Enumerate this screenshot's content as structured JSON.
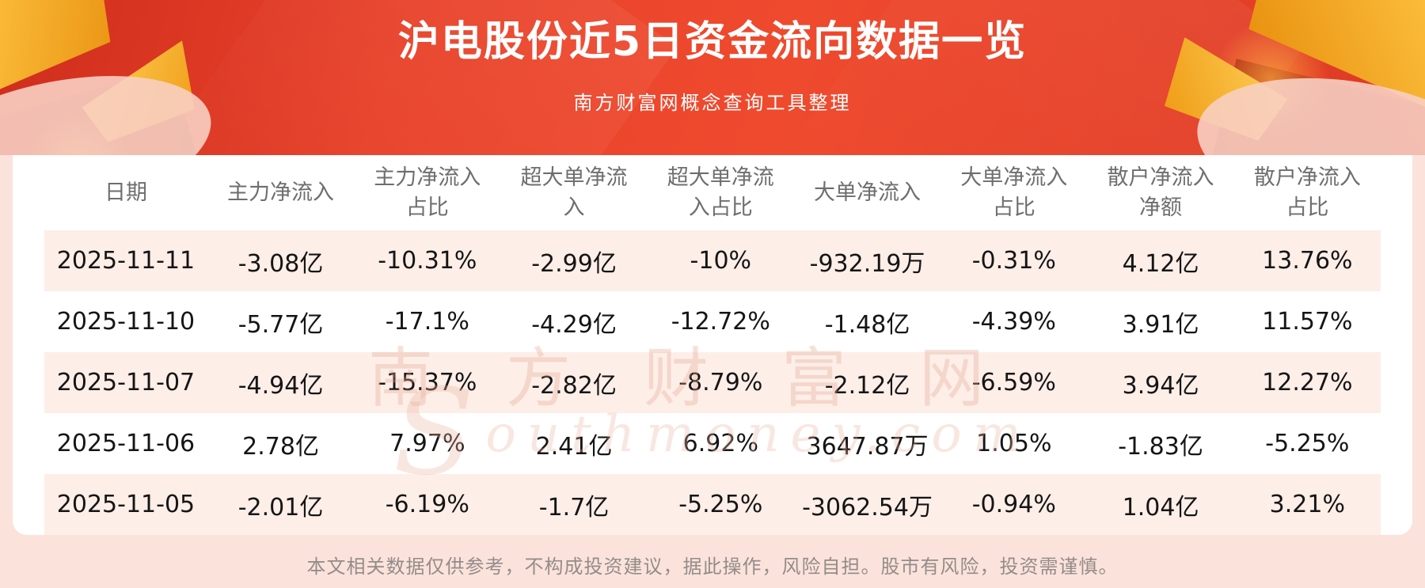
{
  "header": {
    "title": "沪电股份近5日资金流向数据一览",
    "subtitle": "南方财富网概念查询工具整理"
  },
  "chart_data": {
    "type": "table",
    "title": "沪电股份近5日资金流向数据一览",
    "columns": [
      "日期",
      "主力净流入",
      "主力净流入占比",
      "超大单净流入",
      "超大单净流入占比",
      "大单净流入",
      "大单净流入占比",
      "散户净流入净额",
      "散户净流入占比"
    ],
    "rows": [
      [
        "2025-11-11",
        "-3.08亿",
        "-10.31%",
        "-2.99亿",
        "-10%",
        "-932.19万",
        "-0.31%",
        "4.12亿",
        "13.76%"
      ],
      [
        "2025-11-10",
        "-5.77亿",
        "-17.1%",
        "-4.29亿",
        "-12.72%",
        "-1.48亿",
        "-4.39%",
        "3.91亿",
        "11.57%"
      ],
      [
        "2025-11-07",
        "-4.94亿",
        "-15.37%",
        "-2.82亿",
        "-8.79%",
        "-2.12亿",
        "-6.59%",
        "3.94亿",
        "12.27%"
      ],
      [
        "2025-11-06",
        "2.78亿",
        "7.97%",
        "2.41亿",
        "6.92%",
        "3647.87万",
        "1.05%",
        "-1.83亿",
        "-5.25%"
      ],
      [
        "2025-11-05",
        "-2.01亿",
        "-6.19%",
        "-1.7亿",
        "-5.25%",
        "-3062.54万",
        "-0.94%",
        "1.04亿",
        "3.21%"
      ]
    ]
  },
  "watermark": {
    "cn": "南方财富网",
    "en_initial": "S",
    "en_rest": "outhmoney.com"
  },
  "footer": {
    "disclaimer": "本文相关数据仅供参考，不构成投资建议，据此操作，风险自担。股市有风险，投资需谨慎。"
  },
  "colors": {
    "banner_red": "#e8422a",
    "ribbon_gold": "#f5a623",
    "page_pink": "#fbe3dc",
    "row_stripe": "#fdeee8",
    "header_text": "#6e6e6e",
    "data_text": "#151515"
  }
}
